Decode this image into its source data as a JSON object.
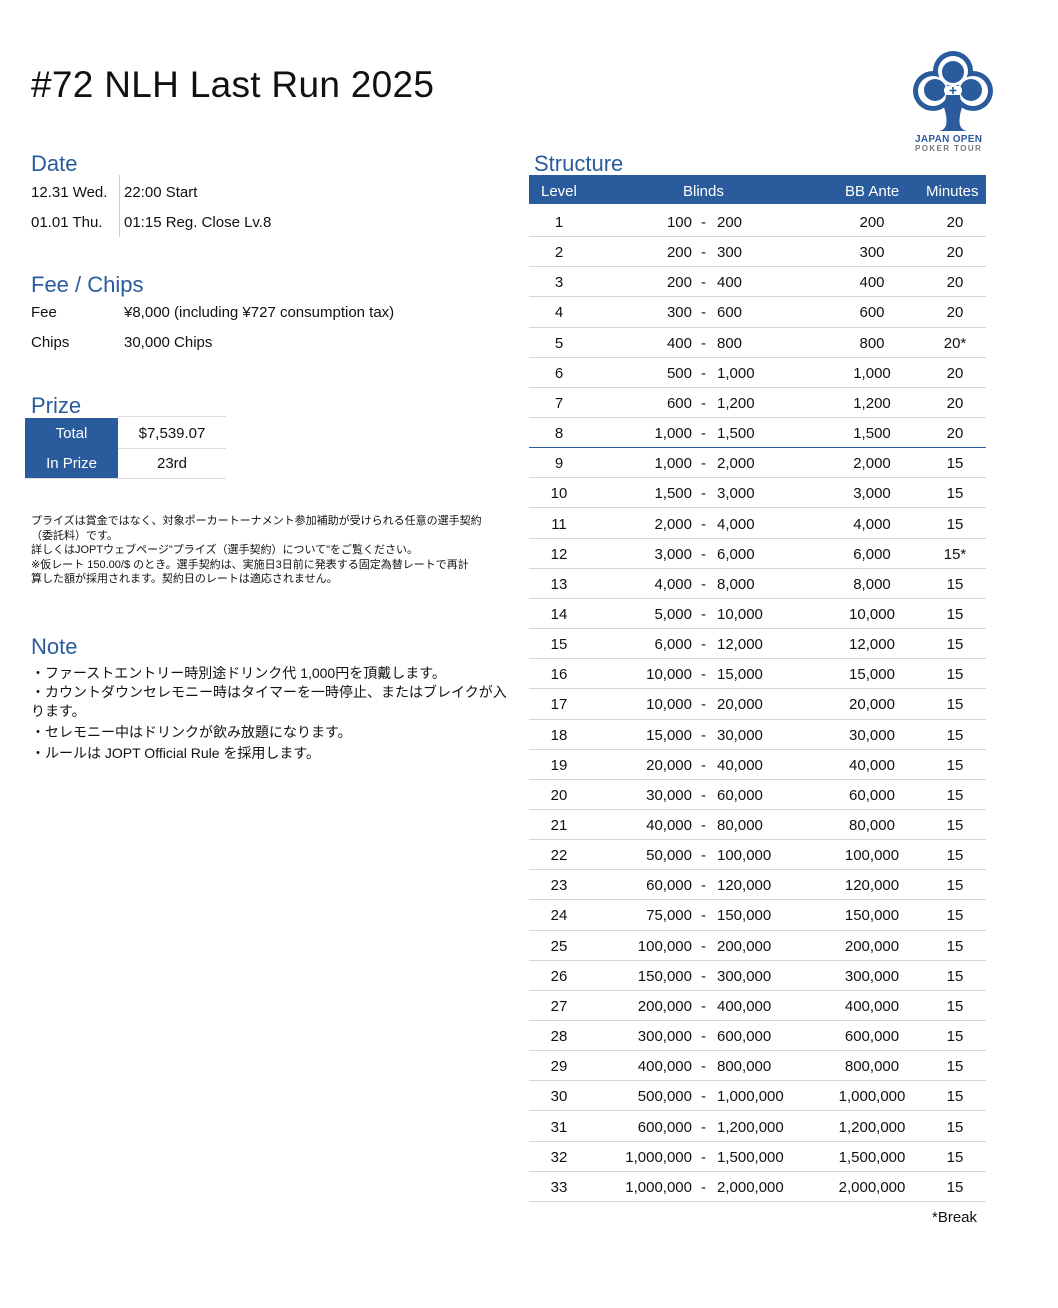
{
  "title": "#72 NLH Last Run 2025",
  "logo": {
    "line1": "JAPAN OPEN",
    "line2": "POKER TOUR",
    "color": "#2a5b9c"
  },
  "date": {
    "heading": "Date",
    "rows": [
      {
        "day": "12.31 Wed.",
        "info": "22:00 Start"
      },
      {
        "day": "01.01 Thu.",
        "info": "01:15 Reg. Close Lv.8"
      }
    ]
  },
  "fee_chips": {
    "heading": "Fee / Chips",
    "rows": [
      {
        "label": "Fee",
        "value": "¥8,000 (including ¥727 consumption tax)"
      },
      {
        "label": "Chips",
        "value": "30,000 Chips"
      }
    ]
  },
  "prize": {
    "heading": "Prize",
    "rows": [
      {
        "label": "Total",
        "value": "$7,539.07"
      },
      {
        "label": "In Prize",
        "value": "23rd"
      }
    ],
    "notes": [
      "プライズは賞金ではなく、対象ポーカートーナメント参加補助が受けられる任意の選手契約",
      "（委託料）です。",
      "詳しくはJOPTウェブページ\"プライズ（選手契約）について\"をご覧ください。",
      "※仮レート 150.00/$ のとき。選手契約は、実施日3日前に発表する固定為替レートで再計",
      "算した額が採用されます。契約日のレートは適応されません。"
    ]
  },
  "note": {
    "heading": "Note",
    "lines": [
      "・ファーストエントリー時別途ドリンク代  1,000円を頂戴します。",
      "・カウントダウンセレモニー時はタイマーを一時停止、またはブレイクが入ります。",
      "・セレモニー中はドリンクが飲み放題になります。",
      "・ルールは JOPT Official Rule を採用します。"
    ]
  },
  "structure": {
    "heading": "Structure",
    "columns": {
      "level": "Level",
      "blinds": "Blinds",
      "ante": "BB Ante",
      "minutes": "Minutes"
    },
    "reg_close_level": 8,
    "rows": [
      [
        "1",
        "100",
        "200",
        "200",
        "20"
      ],
      [
        "2",
        "200",
        "300",
        "300",
        "20"
      ],
      [
        "3",
        "200",
        "400",
        "400",
        "20"
      ],
      [
        "4",
        "300",
        "600",
        "600",
        "20"
      ],
      [
        "5",
        "400",
        "800",
        "800",
        "20*"
      ],
      [
        "6",
        "500",
        "1,000",
        "1,000",
        "20"
      ],
      [
        "7",
        "600",
        "1,200",
        "1,200",
        "20"
      ],
      [
        "8",
        "1,000",
        "1,500",
        "1,500",
        "20"
      ],
      [
        "9",
        "1,000",
        "2,000",
        "2,000",
        "15"
      ],
      [
        "10",
        "1,500",
        "3,000",
        "3,000",
        "15"
      ],
      [
        "11",
        "2,000",
        "4,000",
        "4,000",
        "15"
      ],
      [
        "12",
        "3,000",
        "6,000",
        "6,000",
        "15*"
      ],
      [
        "13",
        "4,000",
        "8,000",
        "8,000",
        "15"
      ],
      [
        "14",
        "5,000",
        "10,000",
        "10,000",
        "15"
      ],
      [
        "15",
        "6,000",
        "12,000",
        "12,000",
        "15"
      ],
      [
        "16",
        "10,000",
        "15,000",
        "15,000",
        "15"
      ],
      [
        "17",
        "10,000",
        "20,000",
        "20,000",
        "15"
      ],
      [
        "18",
        "15,000",
        "30,000",
        "30,000",
        "15"
      ],
      [
        "19",
        "20,000",
        "40,000",
        "40,000",
        "15"
      ],
      [
        "20",
        "30,000",
        "60,000",
        "60,000",
        "15"
      ],
      [
        "21",
        "40,000",
        "80,000",
        "80,000",
        "15"
      ],
      [
        "22",
        "50,000",
        "100,000",
        "100,000",
        "15"
      ],
      [
        "23",
        "60,000",
        "120,000",
        "120,000",
        "15"
      ],
      [
        "24",
        "75,000",
        "150,000",
        "150,000",
        "15"
      ],
      [
        "25",
        "100,000",
        "200,000",
        "200,000",
        "15"
      ],
      [
        "26",
        "150,000",
        "300,000",
        "300,000",
        "15"
      ],
      [
        "27",
        "200,000",
        "400,000",
        "400,000",
        "15"
      ],
      [
        "28",
        "300,000",
        "600,000",
        "600,000",
        "15"
      ],
      [
        "29",
        "400,000",
        "800,000",
        "800,000",
        "15"
      ],
      [
        "30",
        "500,000",
        "1,000,000",
        "1,000,000",
        "15"
      ],
      [
        "31",
        "600,000",
        "1,200,000",
        "1,200,000",
        "15"
      ],
      [
        "32",
        "1,000,000",
        "1,500,000",
        "1,500,000",
        "15"
      ],
      [
        "33",
        "1,000,000",
        "2,000,000",
        "2,000,000",
        "15"
      ]
    ],
    "blind_separator": "-",
    "footnote": "*Break"
  }
}
